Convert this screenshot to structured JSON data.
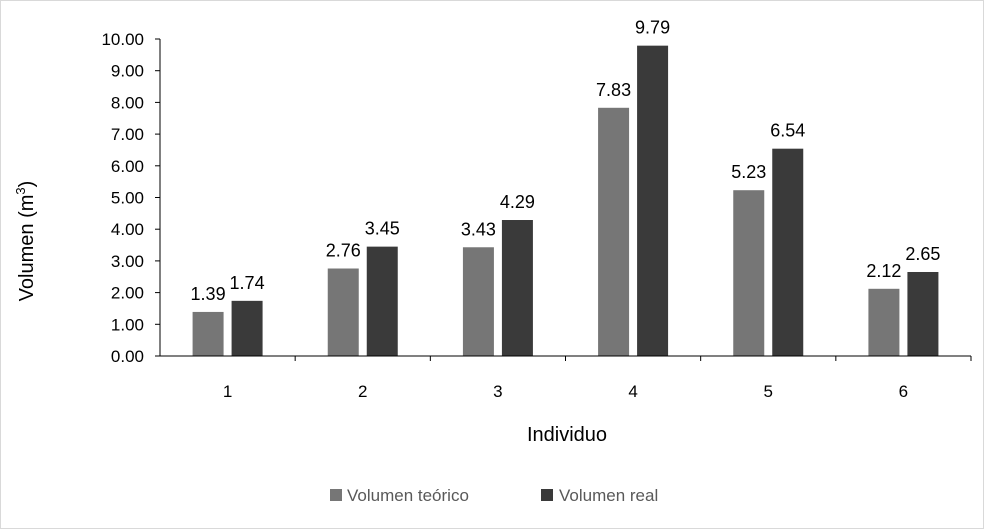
{
  "chart_data": {
    "type": "bar",
    "categories": [
      "1",
      "2",
      "3",
      "4",
      "5",
      "6"
    ],
    "series": [
      {
        "name": "Volumen teórico",
        "values": [
          1.39,
          2.76,
          3.43,
          7.83,
          5.23,
          2.12
        ],
        "color": "#767676"
      },
      {
        "name": "Volumen real",
        "values": [
          1.74,
          3.45,
          4.29,
          9.79,
          6.54,
          2.65
        ],
        "color": "#3a3a3a"
      }
    ],
    "data_labels": [
      [
        "1.39",
        "2.76",
        "3.43",
        "7.83",
        "5.23",
        "2.12"
      ],
      [
        "1.74",
        "3.45",
        "4.29",
        "9.79",
        "6.54",
        "2.65"
      ]
    ],
    "y_ticks": [
      "0.00",
      "1.00",
      "2.00",
      "3.00",
      "4.00",
      "5.00",
      "6.00",
      "7.00",
      "8.00",
      "9.00",
      "10.00"
    ],
    "xlabel": "Individuo",
    "ylabel": "Volumen (m",
    "ylabel_superscript": "3",
    "ylabel_suffix": ")",
    "ylim": [
      0,
      10
    ],
    "grid": false,
    "legend_position": "bottom"
  }
}
